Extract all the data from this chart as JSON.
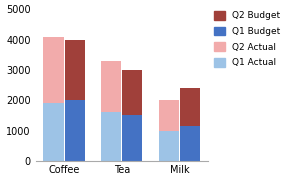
{
  "categories": [
    "Coffee",
    "Tea",
    "Milk"
  ],
  "actual_q1": [
    1900,
    1600,
    1000
  ],
  "actual_q2": [
    2200,
    1700,
    1000
  ],
  "budget_q1": [
    2000,
    1500,
    1150
  ],
  "budget_q2": [
    2000,
    1500,
    1250
  ],
  "color_q1_actual": "#9DC3E6",
  "color_q2_actual": "#F2ABAB",
  "color_q1_budget": "#4472C4",
  "color_q2_budget": "#A0403A",
  "ylim": [
    0,
    5000
  ],
  "yticks": [
    0,
    1000,
    2000,
    3000,
    4000,
    5000
  ],
  "bar_width": 0.35,
  "bar_gap": 0.02,
  "background_color": "#FFFFFF",
  "legend_labels": [
    "Q2 Budget",
    "Q1 Budget",
    "Q2 Actual",
    "Q1 Actual"
  ],
  "figsize": [
    2.97,
    1.87
  ],
  "dpi": 100
}
